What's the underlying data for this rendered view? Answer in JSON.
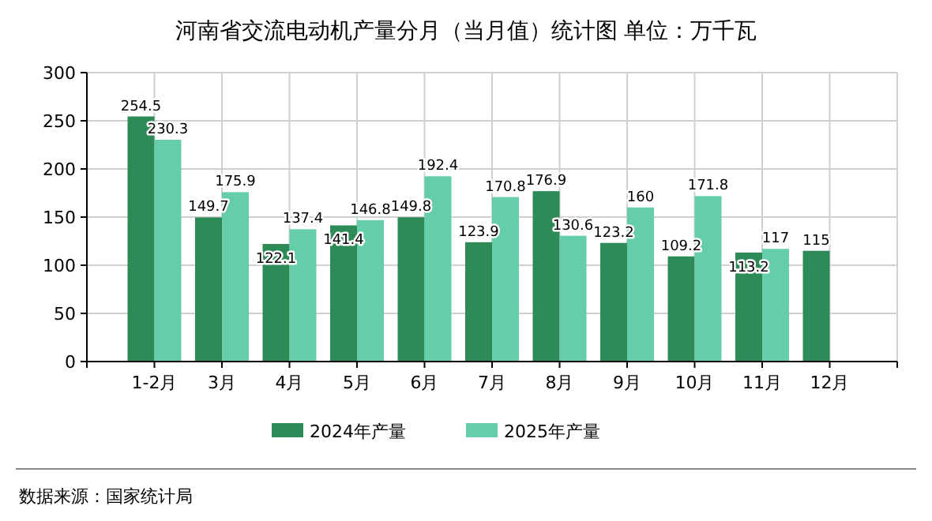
{
  "chart_data": {
    "type": "bar",
    "title": "河南省交流电动机产量分月（当月值）统计图 单位：万千瓦",
    "categories": [
      "1-2月",
      "3月",
      "4月",
      "5月",
      "6月",
      "7月",
      "8月",
      "9月",
      "10月",
      "11月",
      "12月"
    ],
    "series": [
      {
        "name": "2024年产量",
        "color": "#2e8b57",
        "values": [
          254.5,
          149.7,
          122.1,
          141.4,
          149.8,
          123.9,
          176.9,
          123.2,
          109.2,
          113.2,
          115
        ]
      },
      {
        "name": "2025年产量",
        "color": "#66cdaa",
        "values": [
          230.3,
          175.9,
          137.4,
          146.8,
          192.4,
          170.8,
          130.6,
          160,
          171.8,
          117,
          null
        ]
      }
    ],
    "ylim": [
      0,
      300
    ],
    "yticks": [
      0,
      50,
      100,
      150,
      200,
      250,
      300
    ],
    "grid": true,
    "legend": "bottom",
    "data_labels": true,
    "annotations": [
      "数据来源：国家统计局"
    ]
  }
}
